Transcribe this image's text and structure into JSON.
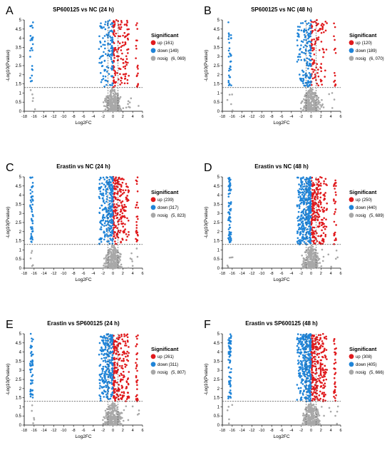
{
  "colors": {
    "up": "#e0191c",
    "down": "#1f84d8",
    "nosig": "#a8a8a8",
    "axis": "#000000",
    "threshold": "#444444"
  },
  "chart_data": [
    {
      "type": "scatter",
      "panel_label": "A",
      "title": "SP600125 vs NC (24 h)",
      "xlabel": "Log2FC",
      "ylabel": "-Log10(Pvalue)",
      "xlim": [
        -18,
        6
      ],
      "ylim": [
        0,
        5
      ],
      "xticks": [
        -18,
        -16,
        -14,
        -12,
        -10,
        -8,
        -6,
        -4,
        -2,
        0,
        2,
        4,
        6
      ],
      "yticks": [
        0,
        0.5,
        1,
        1.5,
        2,
        2.5,
        3,
        3.5,
        4,
        4.5,
        5
      ],
      "threshold_y": 1.3,
      "threshold_x": [
        -1,
        1
      ],
      "legend_title": "Significant",
      "series": [
        {
          "name": "up",
          "count_label": "(161)",
          "count": 161
        },
        {
          "name": "down",
          "count_label": "(149)",
          "count": 149
        },
        {
          "name": "nosig",
          "count_label": "(6, 069)",
          "count": 6069
        }
      ]
    },
    {
      "type": "scatter",
      "panel_label": "B",
      "title": "SP600125 vs NC (48 h)",
      "xlabel": "Log2FC",
      "ylabel": "-Log10(Pvalue)",
      "xlim": [
        -18,
        6
      ],
      "ylim": [
        0,
        5
      ],
      "xticks": [
        -18,
        -16,
        -14,
        -12,
        -10,
        -8,
        -6,
        -4,
        -2,
        0,
        2,
        4,
        6
      ],
      "yticks": [
        0,
        0.5,
        1,
        1.5,
        2,
        2.5,
        3,
        3.5,
        4,
        4.5,
        5
      ],
      "threshold_y": 1.3,
      "threshold_x": [
        -1,
        1
      ],
      "legend_title": "Significant",
      "series": [
        {
          "name": "up",
          "count_label": "(120)",
          "count": 120
        },
        {
          "name": "down",
          "count_label": "(189)",
          "count": 189
        },
        {
          "name": "nosig",
          "count_label": "(6, 070)",
          "count": 6070
        }
      ]
    },
    {
      "type": "scatter",
      "panel_label": "C",
      "title": "Erastin vs NC (24 h)",
      "xlabel": "Log2FC",
      "ylabel": "-Log10(Pvalue)",
      "xlim": [
        -18,
        6
      ],
      "ylim": [
        0,
        5
      ],
      "xticks": [
        -18,
        -16,
        -14,
        -12,
        -10,
        -8,
        -6,
        -4,
        -2,
        0,
        2,
        4,
        6
      ],
      "yticks": [
        0,
        0.5,
        1,
        1.5,
        2,
        2.5,
        3,
        3.5,
        4,
        4.5,
        5
      ],
      "threshold_y": 1.3,
      "threshold_x": [
        -1,
        1
      ],
      "legend_title": "Significant",
      "series": [
        {
          "name": "up",
          "count_label": "(239)",
          "count": 239
        },
        {
          "name": "down",
          "count_label": "(317)",
          "count": 317
        },
        {
          "name": "nosig",
          "count_label": "(5, 823)",
          "count": 5823
        }
      ]
    },
    {
      "type": "scatter",
      "panel_label": "D",
      "title": "Erastin vs NC (48 h)",
      "xlabel": "Log2FC",
      "ylabel": "-Log10(Pvalue)",
      "xlim": [
        -18,
        6
      ],
      "ylim": [
        0,
        5
      ],
      "xticks": [
        -18,
        -16,
        -14,
        -12,
        -10,
        -8,
        -6,
        -4,
        -2,
        0,
        2,
        4,
        6
      ],
      "yticks": [
        0,
        0.5,
        1,
        1.5,
        2,
        2.5,
        3,
        3.5,
        4,
        4.5,
        5
      ],
      "threshold_y": 1.3,
      "threshold_x": [
        -1,
        1
      ],
      "legend_title": "Significant",
      "series": [
        {
          "name": "up",
          "count_label": "(250)",
          "count": 250
        },
        {
          "name": "down",
          "count_label": "(440)",
          "count": 440
        },
        {
          "name": "nosig",
          "count_label": "(5, 689)",
          "count": 5689
        }
      ]
    },
    {
      "type": "scatter",
      "panel_label": "E",
      "title": "Erastin vs SP600125 (24 h)",
      "xlabel": "Log2FC",
      "ylabel": "-Log10(Pvalue)",
      "xlim": [
        -18,
        6
      ],
      "ylim": [
        0,
        5
      ],
      "xticks": [
        -18,
        -16,
        -14,
        -12,
        -10,
        -8,
        -6,
        -4,
        -2,
        0,
        2,
        4,
        6
      ],
      "yticks": [
        0,
        0.5,
        1,
        1.5,
        2,
        2.5,
        3,
        3.5,
        4,
        4.5,
        5
      ],
      "threshold_y": 1.3,
      "threshold_x": [
        -1,
        1
      ],
      "legend_title": "Significant",
      "series": [
        {
          "name": "up",
          "count_label": "(261)",
          "count": 261
        },
        {
          "name": "down",
          "count_label": "(311)",
          "count": 311
        },
        {
          "name": "nosig",
          "count_label": "(5, 807)",
          "count": 5807
        }
      ]
    },
    {
      "type": "scatter",
      "panel_label": "F",
      "title": "Erastin vs SP600125 (48 h)",
      "xlabel": "Log2FC",
      "ylabel": "-Log10(Pvalue)",
      "xlim": [
        -18,
        6
      ],
      "ylim": [
        0,
        5
      ],
      "xticks": [
        -18,
        -16,
        -14,
        -12,
        -10,
        -8,
        -6,
        -4,
        -2,
        0,
        2,
        4,
        6
      ],
      "yticks": [
        0,
        0.5,
        1,
        1.5,
        2,
        2.5,
        3,
        3.5,
        4,
        4.5,
        5
      ],
      "threshold_y": 1.3,
      "threshold_x": [
        -1,
        1
      ],
      "legend_title": "Significant",
      "series": [
        {
          "name": "up",
          "count_label": "(308)",
          "count": 308
        },
        {
          "name": "down",
          "count_label": "(405)",
          "count": 405
        },
        {
          "name": "nosig",
          "count_label": "(5, 666)",
          "count": 5666
        }
      ]
    }
  ]
}
